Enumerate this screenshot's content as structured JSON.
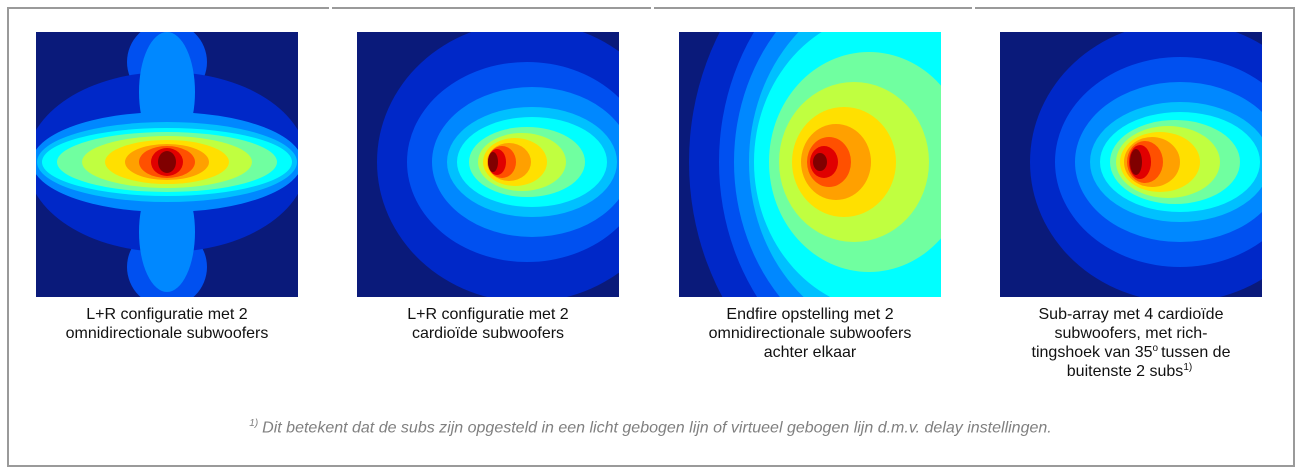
{
  "panels": [
    {
      "caption": [
        {
          "text": "L+R configuratie met 2"
        },
        {
          "text": "omnidirectionale subwoofers"
        }
      ]
    },
    {
      "caption": [
        {
          "text": "L+R configuratie met 2"
        },
        {
          "text": "cardioïde subwoofers"
        }
      ]
    },
    {
      "caption": [
        {
          "text": "Endfire opstelling met 2"
        },
        {
          "text": "omnidirectionale subwoofers"
        },
        {
          "text": "achter elkaar"
        }
      ]
    },
    {
      "caption": [
        {
          "text": "Sub-array met 4 cardioïde"
        },
        {
          "text": "subwoofers, met rich-"
        },
        {
          "text": "tingshoek van 35",
          "sup": "o",
          "tail": "tussen de"
        },
        {
          "text": "buitenste 2 subs",
          "sup": "1)"
        }
      ]
    }
  ],
  "footnote": {
    "mark": "1)",
    "text": "Dit betekent dat de subs zijn opgesteld in een licht gebogen lijn of virtueel gebogen lijn d.m.v. delay instellingen."
  }
}
